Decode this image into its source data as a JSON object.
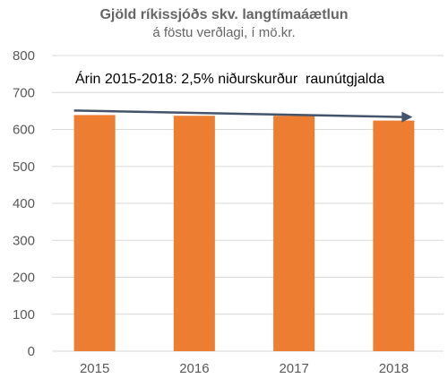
{
  "chart_data": {
    "type": "bar",
    "title": "Gjöld ríkissjóðs skv. langtímaáætlun",
    "subtitle": "á föstu verðlagi, í mö.kr.",
    "categories": [
      "2015",
      "2016",
      "2017",
      "2018"
    ],
    "values": [
      639,
      637,
      637,
      624
    ],
    "ylim": [
      0,
      800
    ],
    "yticks": [
      "0",
      "100",
      "200",
      "300",
      "400",
      "500",
      "600",
      "700",
      "800"
    ],
    "grid": true,
    "legend": "none",
    "annotation": "Árin 2015-2018: 2,5% niðurskurður  raunútgjalda",
    "bar_color": "#ED7D31",
    "arrow_color": "#44546A",
    "grid_color": "#D9D9D9"
  }
}
